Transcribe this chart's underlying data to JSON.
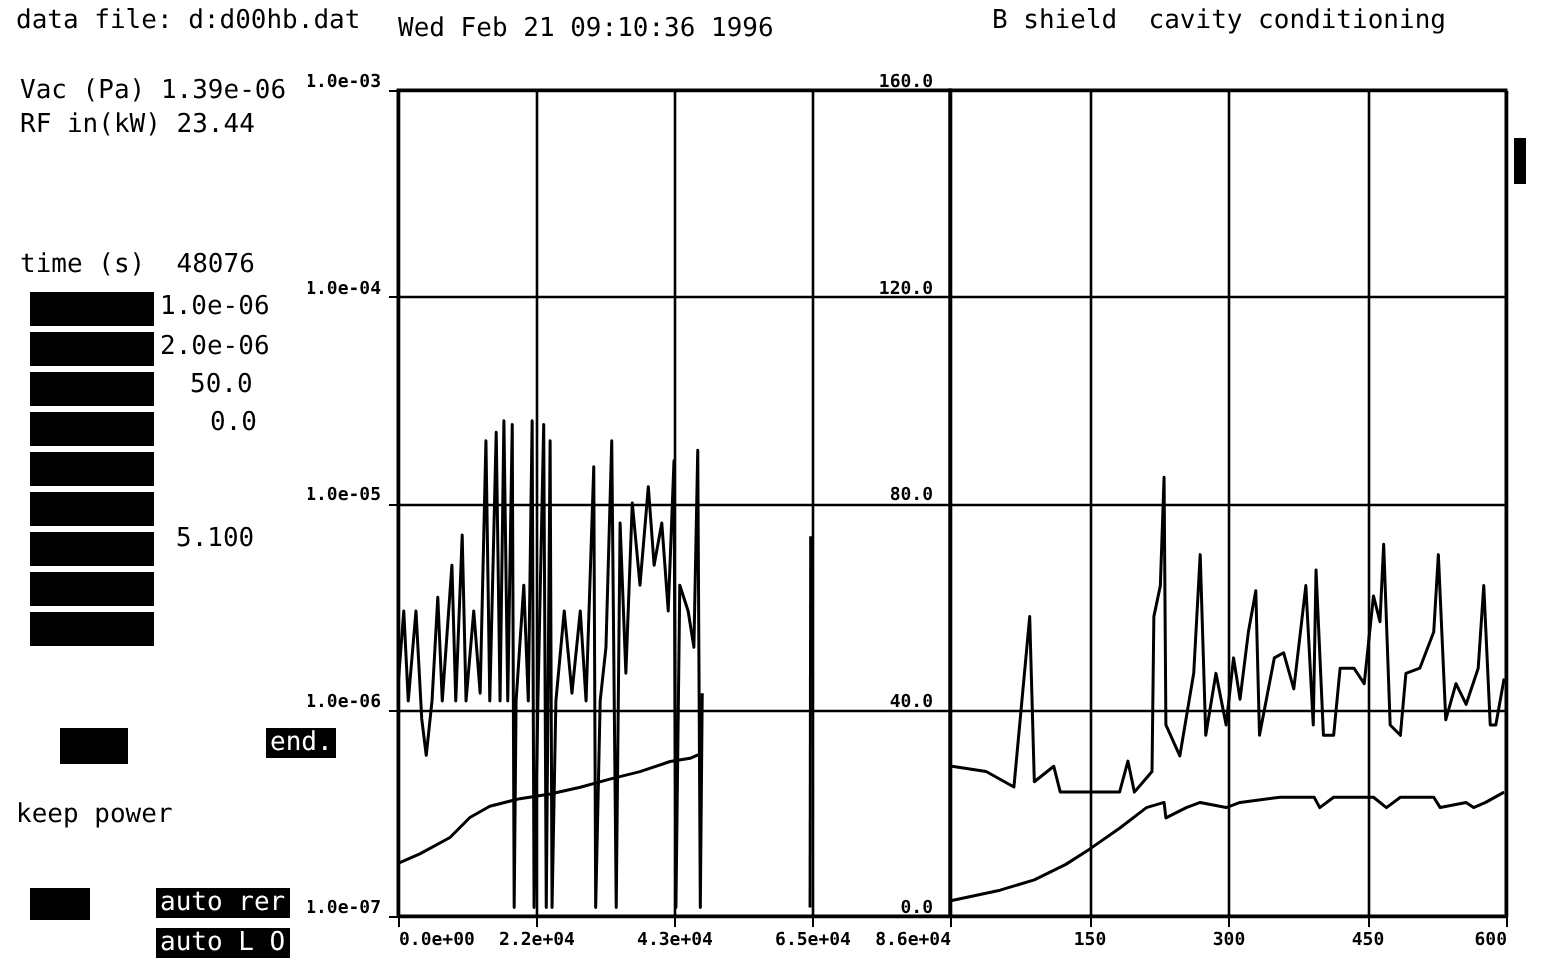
{
  "chart_data": [
    {
      "type": "other",
      "annotations": [
        "data file: d:d00hb.dat",
        "B shield  cavity conditioning",
        "Wed Feb 21 09:10:36 1996",
        "Vac (Pa) 1.39e-06",
        "RF in(kW) 23.44",
        "time (s)  48076",
        "1.0e-06",
        "2.0e-06",
        "50.0",
        "0.0",
        "5.100",
        "end.",
        "keep power",
        "auto rer",
        "auto L O"
      ]
    },
    {
      "type": "line",
      "xlim": [
        0,
        86000
      ],
      "xticks": [
        {
          "value": 0,
          "label": "0.0e+00"
        },
        {
          "value": 21500,
          "label": "2.2e+04"
        },
        {
          "value": 43000,
          "label": "4.3e+04"
        },
        {
          "value": 64500,
          "label": "6.5e+04"
        },
        {
          "value": 86000,
          "label": "8.6e+04"
        }
      ],
      "ylim": [
        1e-07,
        0.001
      ],
      "yticks": [
        {
          "value": 1e-07,
          "label": "1.0e-07"
        },
        {
          "value": 1e-06,
          "label": "1.0e-06"
        },
        {
          "value": 1e-05,
          "label": "1.0e-05"
        },
        {
          "value": 0.0001,
          "label": "1.0e-04"
        },
        {
          "value": 0.001,
          "label": "1.0e-03"
        }
      ],
      "log": "y",
      "grid": true,
      "series": [
        {
          "color": "#000000",
          "x": [
            0,
            900,
            1600,
            2800,
            3700,
            4400,
            5300,
            6200,
            6900,
            8400,
            9000,
            10000,
            10600,
            11800,
            12800,
            13700,
            14300,
            15300,
            15900,
            16500,
            17100,
            17800,
            18100,
            18400,
            19600,
            20300,
            20900,
            21200,
            21800,
            22700,
            23100,
            23700,
            24000,
            24600,
            25900,
            27100,
            28400,
            29300,
            30500,
            30800,
            31500,
            32400,
            33300,
            34000,
            34600,
            35500,
            36500,
            37700,
            39000,
            39900,
            41100,
            42100,
            43000,
            43300,
            43900,
            45200,
            46100,
            46700,
            47100,
            47400
          ],
          "values": [
            1.3e-06,
            3e-06,
            1.1e-06,
            3e-06,
            9e-07,
            6e-07,
            1.1e-06,
            3.5e-06,
            1.1e-06,
            5e-06,
            1.1e-06,
            7e-06,
            1.1e-06,
            3e-06,
            1.2e-06,
            2e-05,
            1.1e-06,
            2.2e-05,
            1.1e-06,
            2.5e-05,
            1.1e-06,
            2.4e-05,
            1.1e-07,
            1.1e-06,
            4e-06,
            1.1e-06,
            2.5e-05,
            1.1e-07,
            1.1e-06,
            2.4e-05,
            1.1e-07,
            2e-05,
            1.1e-07,
            1.1e-06,
            3e-06,
            1.2e-06,
            3e-06,
            1.1e-06,
            1.5e-05,
            1.1e-07,
            1.1e-06,
            2e-06,
            2e-05,
            1.1e-07,
            8e-06,
            1.5e-06,
            1e-05,
            4e-06,
            1.2e-05,
            5e-06,
            8e-06,
            3e-06,
            1.6e-05,
            1.1e-07,
            4e-06,
            3e-06,
            2e-06,
            1.8e-05,
            1.1e-07,
            1.2e-06
          ]
        },
        {
          "color": "#000000",
          "x": [
            0,
            3400,
            8100,
            11200,
            14300,
            19000,
            23700,
            28400,
            33000,
            37700,
            42400,
            45500,
            47100
          ],
          "values": [
            1.8e-07,
            2e-07,
            2.4e-07,
            3e-07,
            3.4e-07,
            3.7e-07,
            3.9e-07,
            4.2e-07,
            4.6e-07,
            5e-07,
            5.6e-07,
            5.8e-07,
            6.1e-07
          ]
        },
        {
          "color": "#000000",
          "x": [
            64200,
            64300
          ],
          "values": [
            1.1e-07,
            6.9e-06
          ]
        }
      ]
    },
    {
      "type": "line",
      "xlim": [
        0,
        600
      ],
      "xticks": [
        150,
        300,
        450,
        600
      ],
      "ylim": [
        0,
        160
      ],
      "yticks": [
        {
          "value": 0,
          "label": "0.0"
        },
        {
          "value": 40,
          "label": "40.0"
        },
        {
          "value": 80,
          "label": "80.0"
        },
        {
          "value": 120,
          "label": "120.0"
        },
        {
          "value": 160,
          "label": "160.0"
        }
      ],
      "grid": true,
      "series": [
        {
          "color": "#000000",
          "x": [
            2,
            39,
            69,
            86,
            91,
            112,
            119,
            140,
            155,
            183,
            192,
            199,
            218,
            220,
            227,
            231,
            233,
            248,
            263,
            270,
            276,
            287,
            298,
            306,
            313,
            322,
            330,
            334,
            350,
            360,
            371,
            384,
            392,
            395,
            403,
            414,
            421,
            436,
            447,
            457,
            464,
            468,
            475,
            486,
            492,
            507,
            522,
            527,
            535,
            546,
            557,
            570,
            576,
            583,
            589,
            598
          ],
          "values": [
            29,
            28,
            25,
            58,
            26,
            29,
            24,
            24,
            24,
            24,
            30,
            24,
            28,
            58,
            64,
            85,
            37,
            31,
            47,
            70,
            35,
            47,
            37,
            50,
            42,
            55,
            63,
            35,
            50,
            51,
            44,
            64,
            37,
            67,
            35,
            35,
            48,
            48,
            45,
            62,
            57,
            72,
            37,
            35,
            47,
            48,
            55,
            70,
            38,
            45,
            41,
            48,
            64,
            37,
            37,
            46
          ]
        },
        {
          "color": "#000000",
          "x": [
            2,
            54,
            91,
            125,
            151,
            183,
            212,
            231,
            233,
            255,
            270,
            298,
            313,
            356,
            393,
            399,
            414,
            457,
            471,
            486,
            522,
            529,
            557,
            565,
            578,
            598
          ],
          "values": [
            3,
            5,
            7,
            10,
            13,
            17,
            21,
            22,
            19,
            21,
            22,
            21,
            22,
            23,
            23,
            21,
            23,
            23,
            21,
            23,
            23,
            21,
            22,
            21,
            22,
            24
          ]
        }
      ]
    }
  ]
}
